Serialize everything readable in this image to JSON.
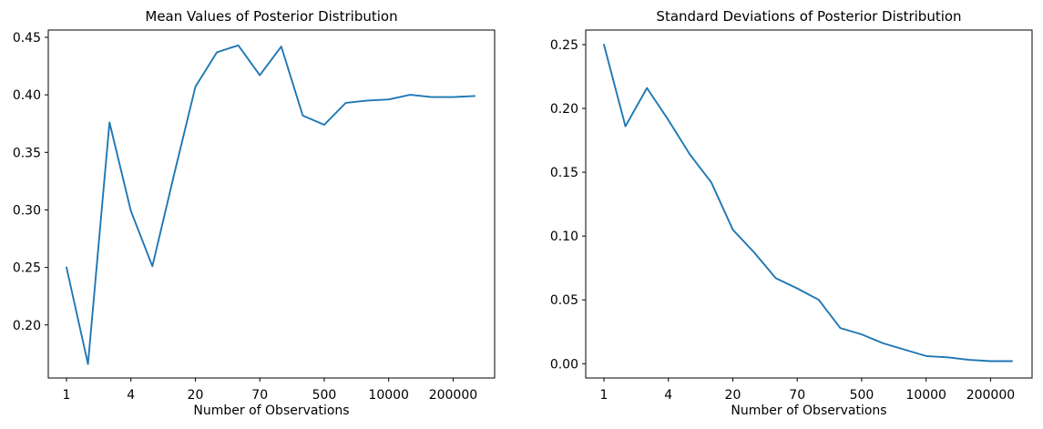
{
  "figure": {
    "background": "#ffffff"
  },
  "chart_data": [
    {
      "id": "mean-posterior-chart",
      "type": "line",
      "title": "Mean Values of Posterior Distribution",
      "xlabel": "Number of Observations",
      "ylabel": "",
      "grid": false,
      "legend": "none",
      "x_scale": "category-index",
      "x_tick_labels": [
        "1",
        "4",
        "20",
        "70",
        "500",
        "10000",
        "200000"
      ],
      "x_tick_indices": [
        0,
        3,
        6,
        9,
        12,
        15,
        18
      ],
      "y_tick_labels": [
        "0.45",
        "0.40",
        "0.35",
        "0.30",
        "0.25",
        "0.20"
      ],
      "ylim": [
        0.1539,
        0.4563
      ],
      "values": [
        0.25,
        0.166,
        0.376,
        0.299,
        0.251,
        0.33,
        0.407,
        0.437,
        0.443,
        0.417,
        0.442,
        0.382,
        0.374,
        0.393,
        0.395,
        0.396,
        0.4,
        0.398,
        0.398,
        0.399
      ],
      "line_color": "#1f77b4"
    },
    {
      "id": "std-posterior-chart",
      "type": "line",
      "title": "Standard Deviations of Posterior Distribution",
      "xlabel": "Number of Observations",
      "ylabel": "",
      "grid": false,
      "legend": "none",
      "x_scale": "category-index",
      "x_tick_labels": [
        "1",
        "4",
        "20",
        "70",
        "500",
        "10000",
        "200000"
      ],
      "x_tick_indices": [
        0,
        3,
        6,
        9,
        12,
        15,
        18
      ],
      "y_tick_labels": [
        "0.25",
        "0.20",
        "0.15",
        "0.10",
        "0.05",
        "0.00"
      ],
      "ylim": [
        -0.0112,
        0.2614
      ],
      "values": [
        0.25,
        0.186,
        0.216,
        0.191,
        0.164,
        0.142,
        0.105,
        0.087,
        0.067,
        0.059,
        0.05,
        0.028,
        0.023,
        0.016,
        0.011,
        0.006,
        0.005,
        0.003,
        0.002,
        0.002
      ],
      "line_color": "#1f77b4"
    }
  ]
}
